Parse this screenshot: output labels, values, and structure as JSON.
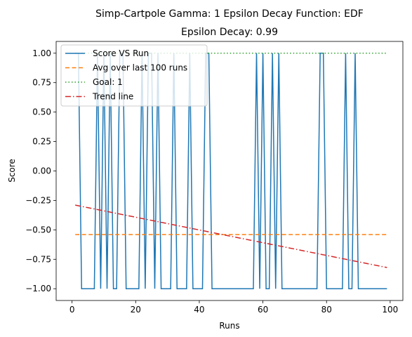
{
  "chart_data": {
    "type": "line",
    "title": "Simp-Cartpole Gamma: 1 Epsilon Decay Function: EDF",
    "subtitle": "Epsilon Decay: 0.99",
    "xlabel": "Runs",
    "ylabel": "Score",
    "xlim": [
      -5,
      104
    ],
    "ylim": [
      -1.1,
      1.1
    ],
    "xticks": [
      0,
      20,
      40,
      60,
      80,
      100
    ],
    "xtick_labels": [
      "0",
      "20",
      "40",
      "60",
      "80",
      "100"
    ],
    "yticks": [
      1.0,
      0.75,
      0.5,
      0.25,
      0.0,
      -0.25,
      -0.5,
      -0.75,
      -1.0
    ],
    "ytick_labels": [
      "1.00",
      "0.75",
      "0.50",
      "0.25",
      "0.00",
      "−0.25",
      "−0.50",
      "−0.75",
      "−1.00"
    ],
    "legend_position": "top-left",
    "series": [
      {
        "name": "Score VS Run",
        "style": "solid",
        "color": "#1f77b4",
        "x": [
          1,
          2,
          3,
          4,
          5,
          6,
          7,
          8,
          9,
          10,
          11,
          12,
          13,
          14,
          15,
          16,
          17,
          18,
          19,
          20,
          21,
          22,
          23,
          24,
          25,
          26,
          27,
          28,
          29,
          30,
          31,
          32,
          33,
          34,
          35,
          36,
          37,
          38,
          39,
          40,
          41,
          42,
          43,
          44,
          45,
          46,
          47,
          48,
          49,
          50,
          51,
          52,
          53,
          54,
          55,
          56,
          57,
          58,
          59,
          60,
          61,
          62,
          63,
          64,
          65,
          66,
          67,
          68,
          69,
          70,
          71,
          72,
          73,
          74,
          75,
          76,
          77,
          78,
          79,
          80,
          81,
          82,
          83,
          84,
          85,
          86,
          87,
          88,
          89,
          90,
          91,
          92,
          93,
          94,
          95,
          96,
          97,
          98,
          99
        ],
        "y": [
          1,
          1,
          -1,
          -1,
          -1,
          -1,
          -1,
          1,
          -1,
          1,
          -1,
          1,
          -1,
          -1,
          1,
          1,
          -1,
          -1,
          -1,
          -1,
          -1,
          1,
          -1,
          1,
          1,
          -1,
          1,
          -1,
          -1,
          -1,
          -1,
          1,
          -1,
          -1,
          -1,
          -1,
          1,
          -1,
          -1,
          -1,
          -1,
          1,
          1,
          -1,
          -1,
          -1,
          -1,
          -1,
          -1,
          -1,
          -1,
          -1,
          -1,
          -1,
          -1,
          -1,
          -1,
          1,
          -1,
          1,
          -1,
          -1,
          1,
          -1,
          1,
          -1,
          -1,
          -1,
          -1,
          -1,
          -1,
          -1,
          -1,
          -1,
          -1,
          -1,
          -1,
          1,
          1,
          -1,
          -1,
          -1,
          -1,
          -1,
          -1,
          1,
          -1,
          -1,
          1,
          -1,
          -1,
          -1,
          -1,
          -1,
          -1,
          -1,
          -1,
          -1,
          -1
        ]
      },
      {
        "name": "Avg over last 100 runs",
        "style": "dashed",
        "color": "#ff7f0e",
        "x": [
          1,
          99
        ],
        "y": [
          -0.54,
          -0.54
        ]
      },
      {
        "name": "Goal: 1",
        "style": "dotted",
        "color": "#2ca02c",
        "x": [
          1,
          99
        ],
        "y": [
          1,
          1
        ]
      },
      {
        "name": "Trend line",
        "style": "dashdot",
        "color": "#d62728",
        "x": [
          1,
          99
        ],
        "y": [
          -0.29,
          -0.82
        ]
      }
    ]
  }
}
